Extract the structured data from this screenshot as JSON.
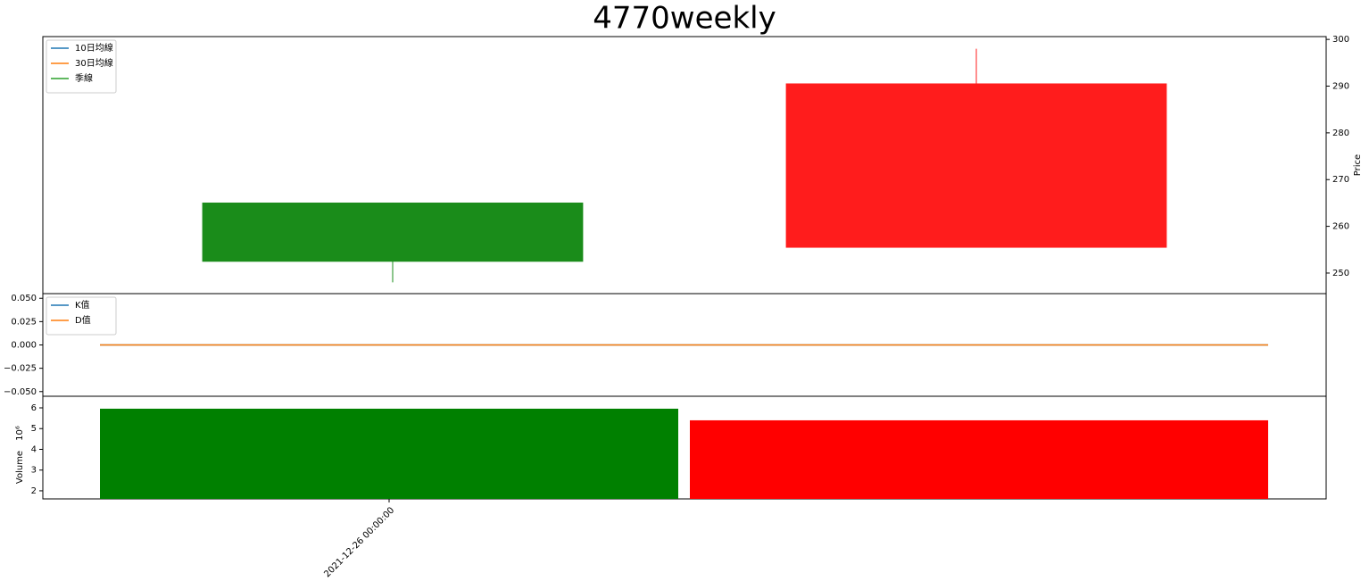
{
  "chart_data": [
    {
      "type": "candlestick",
      "title": "4770weekly",
      "ylabel": "Price",
      "categories": [
        "2021-12-26 00:00:00",
        null
      ],
      "open": [
        265,
        255.5
      ],
      "high": [
        265,
        298
      ],
      "low": [
        248,
        255.5
      ],
      "close": [
        252.5,
        290.5
      ],
      "up_color": "#ff1c1c",
      "down_color": "#1a8c1a",
      "series": [
        {
          "name": "10日均線",
          "color": "#1f77b4",
          "values": [
            null,
            null
          ]
        },
        {
          "name": "30日均線",
          "color": "#ff7f0e",
          "values": [
            null,
            null
          ]
        },
        {
          "name": "季線",
          "color": "#2ca02c",
          "values": [
            null,
            null
          ]
        }
      ],
      "legend": "upper left",
      "ylim": [
        245.6,
        300.6
      ],
      "yticks": [
        250,
        260,
        270,
        280,
        290,
        300
      ]
    },
    {
      "type": "line",
      "series": [
        {
          "name": "K值",
          "color": "#1f77b4",
          "values": [
            0,
            0
          ]
        },
        {
          "name": "D值",
          "color": "#ff7f0e",
          "values": [
            0,
            0
          ]
        }
      ],
      "legend": "upper left",
      "ylim": [
        -0.055,
        0.055
      ],
      "yticks": [
        {
          "value": 0.05,
          "label": "0.050"
        },
        0.025,
        {
          "value": 0,
          "label": "0.000"
        },
        {
          "value": -0.025,
          "label": "−0.025"
        },
        {
          "value": -0.05,
          "label": "−0.050"
        }
      ]
    },
    {
      "type": "bar",
      "ylabel": "Volume",
      "offset_label": "10⁶",
      "values": [
        5.96,
        5.4
      ],
      "colors": [
        "#008000",
        "#ff0000"
      ],
      "ylim": [
        1.61,
        6.56
      ],
      "yticks": [
        2,
        3,
        4,
        5,
        6
      ]
    }
  ]
}
